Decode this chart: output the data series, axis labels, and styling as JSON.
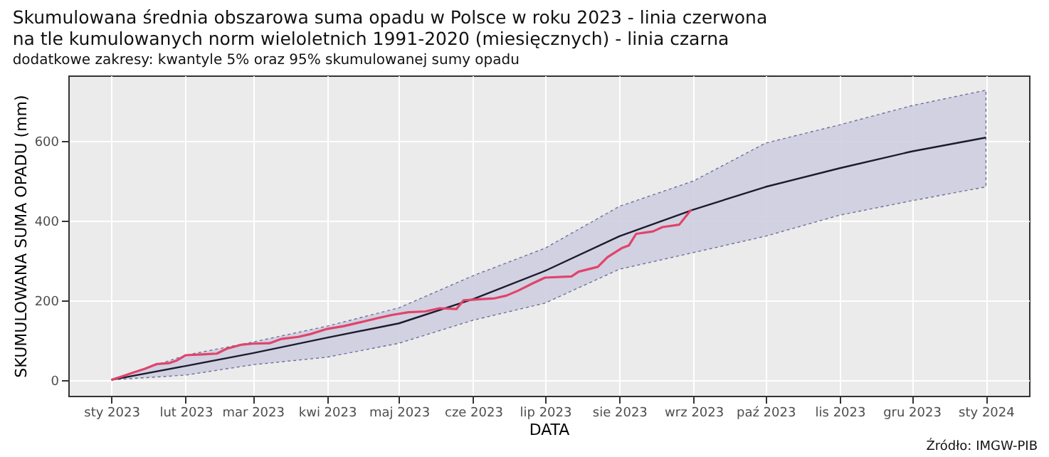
{
  "chart_data": {
    "type": "line",
    "title": "Skumulowana średnia obszarowa suma opadu w Polsce w roku 2023 - linia czerwona\nna tle kumulowanych norm wieloletnich 1991-2020 (miesięcznych) - linia czarna",
    "subtitle": "dodatkowe zakresy: kwantyle 5% oraz 95% skumulowanej sumy opadu",
    "xlabel": "DATA",
    "ylabel": "SKUMULOWANA SUMA OPADU (mm)",
    "annotations": [
      "Źródło: IMGW-PIB"
    ],
    "xlim": [
      "2022-12-14",
      "2024-01-19"
    ],
    "ylim": [
      -40,
      765
    ],
    "yticks": [
      0,
      200,
      400,
      600
    ],
    "xticks": [
      {
        "value": "2023-01-01",
        "label": "sty 2023"
      },
      {
        "value": "2023-02-01",
        "label": "lut 2023"
      },
      {
        "value": "2023-03-01",
        "label": "mar 2023"
      },
      {
        "value": "2023-04-01",
        "label": "kwi 2023"
      },
      {
        "value": "2023-05-01",
        "label": "maj 2023"
      },
      {
        "value": "2023-06-01",
        "label": "cze 2023"
      },
      {
        "value": "2023-07-01",
        "label": "lip 2023"
      },
      {
        "value": "2023-08-01",
        "label": "sie 2023"
      },
      {
        "value": "2023-09-01",
        "label": "wrz 2023"
      },
      {
        "value": "2023-10-01",
        "label": "paź 2023"
      },
      {
        "value": "2023-11-01",
        "label": "lis 2023"
      },
      {
        "value": "2023-12-01",
        "label": "gru 2023"
      },
      {
        "value": "2024-01-01",
        "label": "sty 2024"
      }
    ],
    "grid": true,
    "marker": "none",
    "line_style": "solid",
    "series": [
      {
        "color": "#1c1c2c",
        "x": [
          "2023-01-01",
          "2023-02-01",
          "2023-03-01",
          "2023-04-01",
          "2023-05-01",
          "2023-06-01",
          "2023-07-01",
          "2023-08-01",
          "2023-09-01",
          "2023-10-01",
          "2023-11-01",
          "2023-12-01",
          "2024-01-01"
        ],
        "values": [
          0,
          35,
          67,
          106,
          142,
          203,
          274,
          361,
          428,
          485,
          532,
          574,
          609
        ],
        "lower": [
          0,
          12,
          38,
          57,
          92,
          150,
          193,
          278,
          320,
          361,
          414,
          450,
          485
        ],
        "upper": [
          0,
          62,
          95,
          135,
          181,
          262,
          331,
          436,
          500,
          595,
          641,
          689,
          728
        ]
      },
      {
        "color": "#e0446a",
        "x": [
          "2023-01-01",
          "2023-01-05",
          "2023-01-10",
          "2023-01-15",
          "2023-01-20",
          "2023-01-25",
          "2023-01-28",
          "2023-02-01",
          "2023-02-08",
          "2023-02-14",
          "2023-02-18",
          "2023-02-24",
          "2023-03-01",
          "2023-03-08",
          "2023-03-13",
          "2023-03-20",
          "2023-03-25",
          "2023-04-01",
          "2023-04-08",
          "2023-04-15",
          "2023-04-22",
          "2023-04-28",
          "2023-05-05",
          "2023-05-12",
          "2023-05-18",
          "2023-05-25",
          "2023-05-28",
          "2023-06-05",
          "2023-06-10",
          "2023-06-15",
          "2023-06-20",
          "2023-06-26",
          "2023-07-01",
          "2023-07-12",
          "2023-07-15",
          "2023-07-23",
          "2023-07-27",
          "2023-08-02",
          "2023-08-05",
          "2023-08-08",
          "2023-08-15",
          "2023-08-19",
          "2023-08-26",
          "2023-08-31"
        ],
        "values": [
          0,
          8,
          18,
          28,
          40,
          42,
          48,
          62,
          64,
          66,
          78,
          88,
          91,
          92,
          103,
          108,
          115,
          128,
          135,
          145,
          155,
          163,
          170,
          172,
          180,
          178,
          200,
          203,
          205,
          212,
          225,
          243,
          257,
          260,
          272,
          284,
          308,
          331,
          338,
          367,
          373,
          384,
          390,
          428
        ]
      }
    ]
  }
}
